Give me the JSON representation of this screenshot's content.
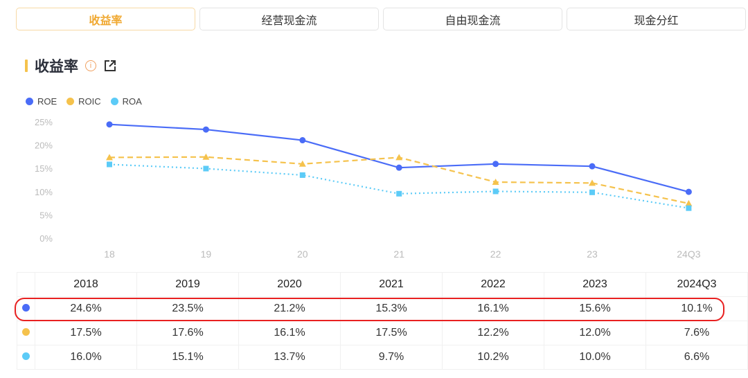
{
  "tabs": [
    {
      "label": "收益率",
      "active": true
    },
    {
      "label": "经营现金流"
    },
    {
      "label": "自由现金流"
    },
    {
      "label": "现金分红"
    }
  ],
  "section": {
    "title": "收益率",
    "info_icon": "info-icon",
    "share_icon": "external-link-icon"
  },
  "chart_data": {
    "type": "line",
    "categories": [
      "18",
      "19",
      "20",
      "21",
      "22",
      "23",
      "24Q3"
    ],
    "y_ticks": [
      "0%",
      "5%",
      "10%",
      "15%",
      "20%",
      "25%"
    ],
    "ylim": [
      0,
      25
    ],
    "legend_position": "top-left",
    "series": [
      {
        "name": "ROE",
        "color": "#4a6cf7",
        "style": "solid",
        "marker": "circle",
        "values": [
          24.6,
          23.5,
          21.2,
          15.3,
          16.1,
          15.6,
          10.1
        ]
      },
      {
        "name": "ROIC",
        "color": "#f5c24c",
        "style": "dashed",
        "marker": "triangle",
        "values": [
          17.5,
          17.6,
          16.1,
          17.5,
          12.2,
          12.0,
          7.6
        ]
      },
      {
        "name": "ROA",
        "color": "#5ccbf7",
        "style": "dotted",
        "marker": "square",
        "values": [
          16.0,
          15.1,
          13.7,
          9.7,
          10.2,
          10.0,
          6.6
        ]
      }
    ]
  },
  "table": {
    "headers": [
      "2018",
      "2019",
      "2020",
      "2021",
      "2022",
      "2023",
      "2024Q3"
    ],
    "rows": [
      [
        "24.6%",
        "23.5%",
        "21.2%",
        "15.3%",
        "16.1%",
        "15.6%",
        "10.1%"
      ],
      [
        "17.5%",
        "17.6%",
        "16.1%",
        "17.5%",
        "12.2%",
        "12.0%",
        "7.6%"
      ],
      [
        "16.0%",
        "15.1%",
        "13.7%",
        "9.7%",
        "10.2%",
        "10.0%",
        "6.6%"
      ]
    ]
  }
}
